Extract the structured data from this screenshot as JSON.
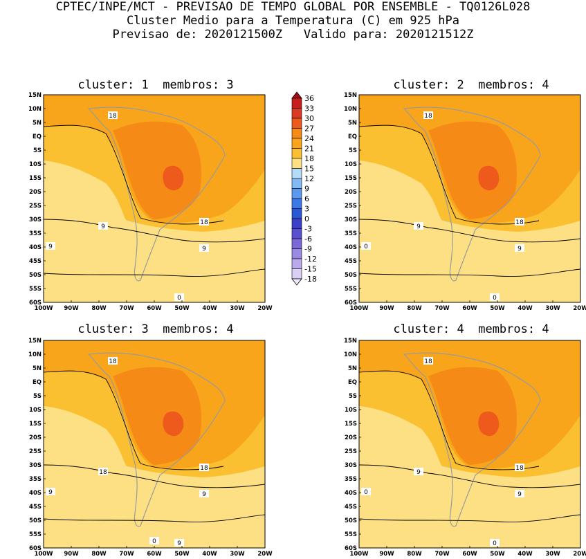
{
  "header": {
    "line1": "CPTEC/INPE/MCT - PREVISAO DE TEMPO GLOBAL POR ENSEMBLE - TQ0126L028",
    "line2": "Cluster Medio para a Temperatura (C) em 925 hPa",
    "line3": "Previsao de: 2020121500Z   Valido para: 2020121512Z"
  },
  "panels": [
    {
      "title": "cluster: 1  membros: 3",
      "contour_labels": [
        "18",
        "18",
        "9",
        "9",
        "9",
        "0"
      ]
    },
    {
      "title": "cluster: 2  membros: 4",
      "contour_labels": [
        "18",
        "18",
        "9",
        "9",
        "0",
        "0"
      ]
    },
    {
      "title": "cluster: 3  membros: 4",
      "contour_labels": [
        "18",
        "18",
        "18",
        "9",
        "9",
        "9",
        "0"
      ]
    },
    {
      "title": "cluster: 4  membros: 4",
      "contour_labels": [
        "18",
        "18",
        "9",
        "9",
        "0",
        "0"
      ]
    }
  ],
  "axes": {
    "lat_labels": [
      "15N",
      "10N",
      "5N",
      "EQ",
      "5S",
      "10S",
      "15S",
      "20S",
      "25S",
      "30S",
      "35S",
      "40S",
      "45S",
      "50S",
      "55S",
      "60S"
    ],
    "lon_labels": [
      "100W",
      "90W",
      "80W",
      "70W",
      "60W",
      "50W",
      "40W",
      "30W",
      "20W"
    ]
  },
  "colorbar": {
    "labels": [
      "36",
      "33",
      "30",
      "27",
      "24",
      "21",
      "18",
      "15",
      "12",
      "9",
      "6",
      "3",
      "0",
      "-3",
      "-6",
      "-9",
      "-12",
      "-15",
      "-18"
    ],
    "colors": [
      "#a50a14",
      "#c81e1e",
      "#dc3a22",
      "#ee5a1c",
      "#f58a16",
      "#f9a51c",
      "#fbc032",
      "#fde083",
      "#b4dcf8",
      "#82baf2",
      "#5a9aee",
      "#3c78e6",
      "#2858d2",
      "#3a40c8",
      "#5a50d2",
      "#7a6ad8",
      "#9a8ae2",
      "#baaaec",
      "#dad0f6",
      "#f0eafc"
    ]
  }
}
